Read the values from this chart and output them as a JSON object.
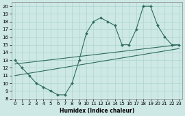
{
  "xlabel": "Humidex (Indice chaleur)",
  "xlim": [
    -0.5,
    23.5
  ],
  "ylim": [
    8,
    20.5
  ],
  "xticks": [
    0,
    1,
    2,
    3,
    4,
    5,
    6,
    7,
    8,
    9,
    10,
    11,
    12,
    13,
    14,
    15,
    16,
    17,
    18,
    19,
    20,
    21,
    22,
    23
  ],
  "yticks": [
    8,
    9,
    10,
    11,
    12,
    13,
    14,
    15,
    16,
    17,
    18,
    19,
    20
  ],
  "bg_color": "#cde8e5",
  "line_color": "#2d6b5e",
  "grid_color": "#aed4d0",
  "series": [
    {
      "x": [
        0,
        23
      ],
      "y": [
        12.5,
        15.0
      ],
      "markers": false
    },
    {
      "x": [
        0,
        23
      ],
      "y": [
        11.0,
        14.5
      ],
      "markers": false
    },
    {
      "x": [
        0,
        1,
        2,
        3,
        4,
        5,
        6,
        7,
        8,
        9,
        10,
        11,
        12,
        13,
        14,
        15,
        16,
        17,
        18,
        19,
        20,
        21,
        22,
        23
      ],
      "y": [
        13,
        12,
        11,
        10,
        9.5,
        9,
        8.5,
        8.5,
        10,
        13,
        16.5,
        18,
        18.5,
        18,
        17.5,
        15,
        15,
        17,
        20,
        20,
        17.5,
        16,
        15,
        15
      ],
      "markers": true
    }
  ]
}
